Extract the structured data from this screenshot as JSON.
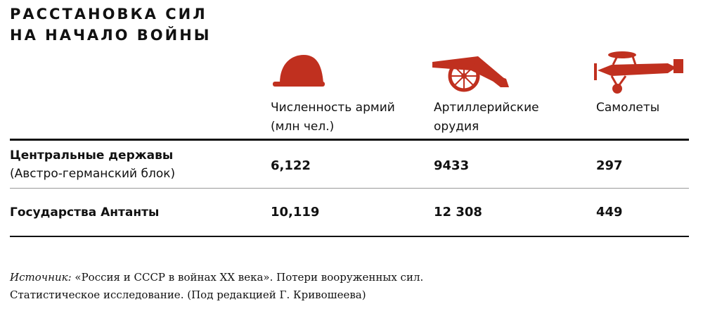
{
  "header": {
    "title": [
      "РАССТАНОВКА СИЛ",
      "НА НАЧАЛО ВОЙНЫ"
    ]
  },
  "table": {
    "columns": [
      [
        "Численность армий",
        "(млн чел.)"
      ],
      [
        "Артиллерийские",
        "орудия"
      ],
      [
        "Самолеты"
      ]
    ],
    "rows": [
      {
        "name": "Центральные державы",
        "note": "(Австро-германский блок)",
        "cells": [
          "6,122",
          "9433",
          "297"
        ]
      },
      {
        "name": "Государства Антанты",
        "cells": [
          "10,119",
          "12 308",
          "449"
        ]
      }
    ]
  },
  "source": {
    "label": "Источник:",
    "lines": [
      "«Россия и СССР в войнах XX века». Потери вооруженных сил.",
      "Статистическое исследование. (Под редакцией Г. Кривошеева)"
    ]
  }
}
